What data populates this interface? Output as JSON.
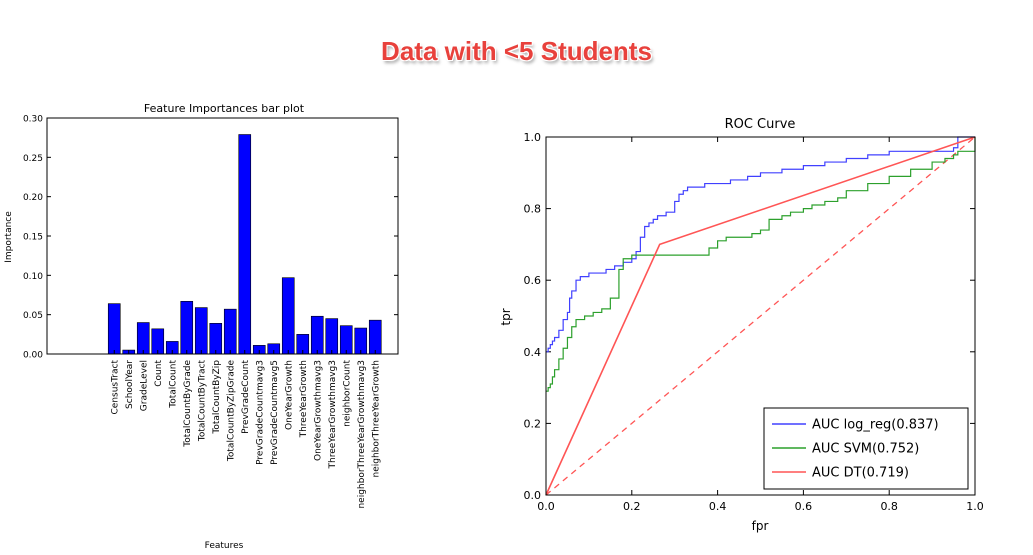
{
  "banner": "Data with <5 Students",
  "colors": {
    "bar": "#0000ff",
    "log_reg": "#4040ff",
    "svm": "#2ca02c",
    "dt": "#ff5555"
  },
  "chart_data": [
    {
      "type": "bar",
      "title": "Feature Importances bar plot",
      "xlabel": "Features",
      "ylabel": "Importance",
      "ylim": [
        0,
        0.3
      ],
      "yticks": [
        "0.00",
        "0.05",
        "0.10",
        "0.15",
        "0.20",
        "0.25",
        "0.30"
      ],
      "categories": [
        "CensusTract",
        "SchoolYear",
        "GradeLevel",
        "Count",
        "TotalCount",
        "TotalCountByGrade",
        "TotalCountByTract",
        "TotalCountByZip",
        "TotalCountByZipGrade",
        "PrevGradeCount",
        "PrevGradeCountmavg3",
        "PrevGradeCountmavg5",
        "OneYearGrowth",
        "ThreeYearGrowth",
        "OneYearGrowthmavg3",
        "ThreeYearGrowthmavg3",
        "neighborCount",
        "neighborThreeYearGrowthmavg3",
        "neighborThreeYearGrowth"
      ],
      "values": [
        0.064,
        0.005,
        0.04,
        0.032,
        0.016,
        0.067,
        0.059,
        0.039,
        0.057,
        0.279,
        0.011,
        0.013,
        0.097,
        0.025,
        0.048,
        0.045,
        0.036,
        0.033,
        0.043
      ],
      "grid": false
    },
    {
      "type": "line",
      "title": "ROC Curve",
      "xlabel": "fpr",
      "ylabel": "tpr",
      "xlim": [
        0,
        1
      ],
      "ylim": [
        0,
        1
      ],
      "xticks": [
        "0.0",
        "0.2",
        "0.4",
        "0.6",
        "0.8",
        "1.0"
      ],
      "yticks": [
        "0.0",
        "0.2",
        "0.4",
        "0.6",
        "0.8",
        "1.0"
      ],
      "legend_position": "bottom-right",
      "series": [
        {
          "name": "AUC log_reg(0.837)",
          "x": [
            0,
            0.005,
            0.01,
            0.015,
            0.02,
            0.03,
            0.04,
            0.05,
            0.055,
            0.06,
            0.07,
            0.08,
            0.1,
            0.12,
            0.14,
            0.16,
            0.18,
            0.2,
            0.21,
            0.22,
            0.23,
            0.24,
            0.25,
            0.26,
            0.28,
            0.3,
            0.31,
            0.32,
            0.33,
            0.35,
            0.37,
            0.4,
            0.43,
            0.45,
            0.47,
            0.5,
            0.55,
            0.6,
            0.65,
            0.7,
            0.75,
            0.8,
            0.85,
            0.9,
            0.95,
            0.96,
            1.0
          ],
          "y": [
            0.4,
            0.41,
            0.42,
            0.43,
            0.44,
            0.46,
            0.49,
            0.51,
            0.55,
            0.57,
            0.6,
            0.61,
            0.62,
            0.62,
            0.63,
            0.64,
            0.65,
            0.66,
            0.68,
            0.72,
            0.75,
            0.76,
            0.77,
            0.78,
            0.79,
            0.82,
            0.84,
            0.85,
            0.86,
            0.86,
            0.87,
            0.87,
            0.88,
            0.88,
            0.89,
            0.9,
            0.91,
            0.92,
            0.93,
            0.94,
            0.95,
            0.96,
            0.96,
            0.96,
            0.97,
            1.0,
            1.0
          ]
        },
        {
          "name": "AUC SVM(0.752)",
          "x": [
            0,
            0.005,
            0.01,
            0.015,
            0.02,
            0.03,
            0.04,
            0.05,
            0.06,
            0.07,
            0.09,
            0.11,
            0.13,
            0.15,
            0.17,
            0.18,
            0.2,
            0.25,
            0.3,
            0.35,
            0.38,
            0.4,
            0.42,
            0.45,
            0.48,
            0.5,
            0.52,
            0.55,
            0.57,
            0.6,
            0.62,
            0.65,
            0.68,
            0.7,
            0.75,
            0.8,
            0.85,
            0.9,
            0.93,
            0.95,
            0.96,
            1.0
          ],
          "y": [
            0.29,
            0.3,
            0.31,
            0.33,
            0.35,
            0.38,
            0.41,
            0.44,
            0.47,
            0.49,
            0.5,
            0.51,
            0.52,
            0.55,
            0.63,
            0.66,
            0.67,
            0.67,
            0.67,
            0.67,
            0.69,
            0.71,
            0.72,
            0.72,
            0.73,
            0.74,
            0.77,
            0.78,
            0.79,
            0.8,
            0.81,
            0.82,
            0.83,
            0.85,
            0.87,
            0.89,
            0.91,
            0.93,
            0.94,
            0.95,
            0.96,
            1.0
          ]
        },
        {
          "name": "AUC DT(0.719)",
          "x": [
            0,
            0.265,
            1.0
          ],
          "y": [
            0,
            0.7,
            1.0
          ]
        }
      ],
      "reference_line": {
        "x": [
          0,
          1
        ],
        "y": [
          0,
          1
        ],
        "style": "dashed"
      }
    }
  ]
}
